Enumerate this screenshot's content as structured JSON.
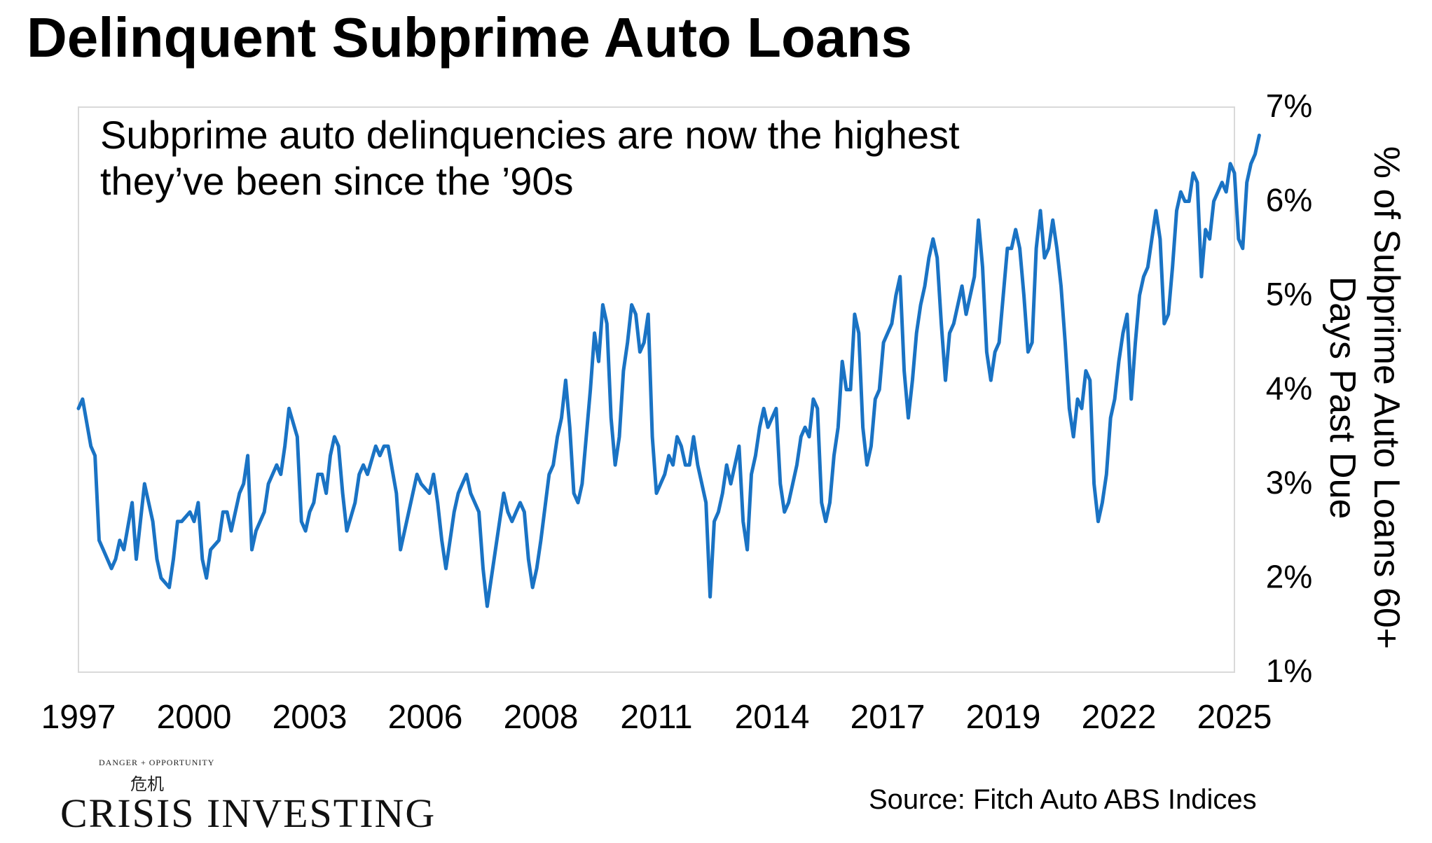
{
  "title": "Delinquent Subprime Auto Loans",
  "annotation_lines": [
    "Subprime auto delinquencies are now the highest",
    "they’ve been since the ’90s"
  ],
  "ylabel_lines": [
    "% of Subprime Auto Loans 60+",
    "Days Past Due"
  ],
  "source": "Source: Fitch Auto ABS Indices",
  "logo": {
    "top_text": "DANGER + OPPORTUNITY",
    "glyphs": "危机",
    "name": "CRISIS INVESTING"
  },
  "colors": {
    "line": "#1a73c4",
    "frame": "#d9d9d9",
    "text": "#000000"
  },
  "chart_data": {
    "type": "line",
    "title": "Delinquent Subprime Auto Loans",
    "xlabel": "",
    "ylabel": "% of Subprime Auto Loans 60+ Days Past Due",
    "x_tick_labels": [
      "1997",
      "2000",
      "2003",
      "2006",
      "2008",
      "2011",
      "2014",
      "2017",
      "2019",
      "2022",
      "2025"
    ],
    "y_tick_labels": [
      "1%",
      "2%",
      "3%",
      "4%",
      "5%",
      "6%",
      "7%"
    ],
    "ylim": [
      1,
      7
    ],
    "xlim": [
      1997,
      2025
    ],
    "grid": false,
    "legend": "none",
    "series": [
      {
        "values": [
          [
            1997.0,
            3.8
          ],
          [
            1997.1,
            3.9
          ],
          [
            1997.3,
            3.4
          ],
          [
            1997.4,
            3.3
          ],
          [
            1997.5,
            2.4
          ],
          [
            1997.6,
            2.3
          ],
          [
            1997.8,
            2.1
          ],
          [
            1997.9,
            2.2
          ],
          [
            1998.0,
            2.4
          ],
          [
            1998.1,
            2.3
          ],
          [
            1998.3,
            2.8
          ],
          [
            1998.4,
            2.2
          ],
          [
            1998.6,
            3.0
          ],
          [
            1998.8,
            2.6
          ],
          [
            1998.9,
            2.2
          ],
          [
            1999.0,
            2.0
          ],
          [
            1999.2,
            1.9
          ],
          [
            1999.3,
            2.2
          ],
          [
            1999.4,
            2.6
          ],
          [
            1999.5,
            2.6
          ],
          [
            1999.7,
            2.7
          ],
          [
            1999.8,
            2.6
          ],
          [
            1999.9,
            2.8
          ],
          [
            2000.0,
            2.2
          ],
          [
            2000.1,
            2.0
          ],
          [
            2000.2,
            2.3
          ],
          [
            2000.4,
            2.4
          ],
          [
            2000.5,
            2.7
          ],
          [
            2000.6,
            2.7
          ],
          [
            2000.7,
            2.5
          ],
          [
            2000.9,
            2.9
          ],
          [
            2001.0,
            3.0
          ],
          [
            2001.1,
            3.3
          ],
          [
            2001.2,
            2.3
          ],
          [
            2001.3,
            2.5
          ],
          [
            2001.5,
            2.7
          ],
          [
            2001.6,
            3.0
          ],
          [
            2001.8,
            3.2
          ],
          [
            2001.9,
            3.1
          ],
          [
            2002.0,
            3.4
          ],
          [
            2002.1,
            3.8
          ],
          [
            2002.3,
            3.5
          ],
          [
            2002.4,
            2.6
          ],
          [
            2002.5,
            2.5
          ],
          [
            2002.6,
            2.7
          ],
          [
            2002.7,
            2.8
          ],
          [
            2002.8,
            3.1
          ],
          [
            2002.9,
            3.1
          ],
          [
            2003.0,
            2.9
          ],
          [
            2003.1,
            3.3
          ],
          [
            2003.2,
            3.5
          ],
          [
            2003.3,
            3.4
          ],
          [
            2003.4,
            2.9
          ],
          [
            2003.5,
            2.5
          ],
          [
            2003.7,
            2.8
          ],
          [
            2003.8,
            3.1
          ],
          [
            2003.9,
            3.2
          ],
          [
            2004.0,
            3.1
          ],
          [
            2004.2,
            3.4
          ],
          [
            2004.3,
            3.3
          ],
          [
            2004.4,
            3.4
          ],
          [
            2004.5,
            3.4
          ],
          [
            2004.7,
            2.9
          ],
          [
            2004.8,
            2.3
          ],
          [
            2004.9,
            2.5
          ],
          [
            2005.0,
            2.7
          ],
          [
            2005.2,
            3.1
          ],
          [
            2005.3,
            3.0
          ],
          [
            2005.5,
            2.9
          ],
          [
            2005.6,
            3.1
          ],
          [
            2005.7,
            2.8
          ],
          [
            2005.8,
            2.4
          ],
          [
            2005.9,
            2.1
          ],
          [
            2006.0,
            2.4
          ],
          [
            2006.1,
            2.7
          ],
          [
            2006.2,
            2.9
          ],
          [
            2006.4,
            3.1
          ],
          [
            2006.5,
            2.9
          ],
          [
            2006.6,
            2.8
          ],
          [
            2006.7,
            2.7
          ],
          [
            2006.8,
            2.1
          ],
          [
            2006.9,
            1.7
          ],
          [
            2007.0,
            2.0
          ],
          [
            2007.1,
            2.3
          ],
          [
            2007.3,
            2.9
          ],
          [
            2007.4,
            2.7
          ],
          [
            2007.5,
            2.6
          ],
          [
            2007.6,
            2.7
          ],
          [
            2007.7,
            2.8
          ],
          [
            2007.8,
            2.7
          ],
          [
            2007.9,
            2.2
          ],
          [
            2008.0,
            1.9
          ],
          [
            2008.1,
            2.1
          ],
          [
            2008.2,
            2.4
          ],
          [
            2008.4,
            3.1
          ],
          [
            2008.5,
            3.2
          ],
          [
            2008.6,
            3.5
          ],
          [
            2008.7,
            3.7
          ],
          [
            2008.8,
            4.1
          ],
          [
            2008.9,
            3.6
          ],
          [
            2009.0,
            2.9
          ],
          [
            2009.1,
            2.8
          ],
          [
            2009.2,
            3.0
          ],
          [
            2009.3,
            3.5
          ],
          [
            2009.4,
            4.0
          ],
          [
            2009.5,
            4.6
          ],
          [
            2009.6,
            4.3
          ],
          [
            2009.7,
            4.9
          ],
          [
            2009.8,
            4.7
          ],
          [
            2009.9,
            3.7
          ],
          [
            2010.0,
            3.2
          ],
          [
            2010.1,
            3.5
          ],
          [
            2010.2,
            4.2
          ],
          [
            2010.3,
            4.5
          ],
          [
            2010.4,
            4.9
          ],
          [
            2010.5,
            4.8
          ],
          [
            2010.6,
            4.4
          ],
          [
            2010.7,
            4.5
          ],
          [
            2010.8,
            4.8
          ],
          [
            2010.9,
            3.5
          ],
          [
            2011.0,
            2.9
          ],
          [
            2011.1,
            3.0
          ],
          [
            2011.2,
            3.1
          ],
          [
            2011.3,
            3.3
          ],
          [
            2011.4,
            3.2
          ],
          [
            2011.5,
            3.5
          ],
          [
            2011.6,
            3.4
          ],
          [
            2011.7,
            3.2
          ],
          [
            2011.8,
            3.2
          ],
          [
            2011.9,
            3.5
          ],
          [
            2012.0,
            3.2
          ],
          [
            2012.2,
            2.8
          ],
          [
            2012.3,
            1.8
          ],
          [
            2012.4,
            2.6
          ],
          [
            2012.5,
            2.7
          ],
          [
            2012.6,
            2.9
          ],
          [
            2012.7,
            3.2
          ],
          [
            2012.8,
            3.0
          ],
          [
            2012.9,
            3.2
          ],
          [
            2013.0,
            3.4
          ],
          [
            2013.1,
            2.6
          ],
          [
            2013.2,
            2.3
          ],
          [
            2013.3,
            3.1
          ],
          [
            2013.4,
            3.3
          ],
          [
            2013.5,
            3.6
          ],
          [
            2013.6,
            3.8
          ],
          [
            2013.7,
            3.6
          ],
          [
            2013.8,
            3.7
          ],
          [
            2013.9,
            3.8
          ],
          [
            2014.0,
            3.0
          ],
          [
            2014.1,
            2.7
          ],
          [
            2014.2,
            2.8
          ],
          [
            2014.3,
            3.0
          ],
          [
            2014.4,
            3.2
          ],
          [
            2014.5,
            3.5
          ],
          [
            2014.6,
            3.6
          ],
          [
            2014.7,
            3.5
          ],
          [
            2014.8,
            3.9
          ],
          [
            2014.9,
            3.8
          ],
          [
            2015.0,
            2.8
          ],
          [
            2015.1,
            2.6
          ],
          [
            2015.2,
            2.8
          ],
          [
            2015.3,
            3.3
          ],
          [
            2015.4,
            3.6
          ],
          [
            2015.5,
            4.3
          ],
          [
            2015.6,
            4.0
          ],
          [
            2015.7,
            4.0
          ],
          [
            2015.8,
            4.8
          ],
          [
            2015.9,
            4.6
          ],
          [
            2016.0,
            3.6
          ],
          [
            2016.1,
            3.2
          ],
          [
            2016.2,
            3.4
          ],
          [
            2016.3,
            3.9
          ],
          [
            2016.4,
            4.0
          ],
          [
            2016.5,
            4.5
          ],
          [
            2016.6,
            4.6
          ],
          [
            2016.7,
            4.7
          ],
          [
            2016.8,
            5.0
          ],
          [
            2016.9,
            5.2
          ],
          [
            2017.0,
            4.2
          ],
          [
            2017.1,
            3.7
          ],
          [
            2017.2,
            4.1
          ],
          [
            2017.3,
            4.6
          ],
          [
            2017.4,
            4.9
          ],
          [
            2017.5,
            5.1
          ],
          [
            2017.6,
            5.4
          ],
          [
            2017.7,
            5.6
          ],
          [
            2017.8,
            5.4
          ],
          [
            2017.9,
            4.7
          ],
          [
            2018.0,
            4.1
          ],
          [
            2018.1,
            4.6
          ],
          [
            2018.2,
            4.7
          ],
          [
            2018.3,
            4.9
          ],
          [
            2018.4,
            5.1
          ],
          [
            2018.5,
            4.8
          ],
          [
            2018.6,
            5.0
          ],
          [
            2018.7,
            5.2
          ],
          [
            2018.8,
            5.8
          ],
          [
            2018.9,
            5.3
          ],
          [
            2019.0,
            4.4
          ],
          [
            2019.1,
            4.1
          ],
          [
            2019.2,
            4.4
          ],
          [
            2019.3,
            4.5
          ],
          [
            2019.4,
            5.0
          ],
          [
            2019.5,
            5.5
          ],
          [
            2019.6,
            5.5
          ],
          [
            2019.7,
            5.7
          ],
          [
            2019.8,
            5.5
          ],
          [
            2019.9,
            5.0
          ],
          [
            2020.0,
            4.4
          ],
          [
            2020.1,
            4.5
          ],
          [
            2020.2,
            5.5
          ],
          [
            2020.3,
            5.9
          ],
          [
            2020.4,
            5.4
          ],
          [
            2020.5,
            5.5
          ],
          [
            2020.6,
            5.8
          ],
          [
            2020.7,
            5.5
          ],
          [
            2020.8,
            5.1
          ],
          [
            2020.9,
            4.5
          ],
          [
            2021.0,
            3.8
          ],
          [
            2021.1,
            3.5
          ],
          [
            2021.2,
            3.9
          ],
          [
            2021.3,
            3.8
          ],
          [
            2021.4,
            4.2
          ],
          [
            2021.5,
            4.1
          ],
          [
            2021.6,
            3.0
          ],
          [
            2021.7,
            2.6
          ],
          [
            2021.8,
            2.8
          ],
          [
            2021.9,
            3.1
          ],
          [
            2022.0,
            3.7
          ],
          [
            2022.1,
            3.9
          ],
          [
            2022.2,
            4.3
          ],
          [
            2022.3,
            4.6
          ],
          [
            2022.4,
            4.8
          ],
          [
            2022.5,
            3.9
          ],
          [
            2022.6,
            4.5
          ],
          [
            2022.7,
            5.0
          ],
          [
            2022.8,
            5.2
          ],
          [
            2022.9,
            5.3
          ],
          [
            2023.0,
            5.6
          ],
          [
            2023.1,
            5.9
          ],
          [
            2023.2,
            5.6
          ],
          [
            2023.3,
            4.7
          ],
          [
            2023.4,
            4.8
          ],
          [
            2023.5,
            5.3
          ],
          [
            2023.6,
            5.9
          ],
          [
            2023.7,
            6.1
          ],
          [
            2023.8,
            6.0
          ],
          [
            2023.9,
            6.0
          ],
          [
            2024.0,
            6.3
          ],
          [
            2024.1,
            6.2
          ],
          [
            2024.2,
            5.2
          ],
          [
            2024.3,
            5.7
          ],
          [
            2024.4,
            5.6
          ],
          [
            2024.5,
            6.0
          ],
          [
            2024.6,
            6.1
          ],
          [
            2024.7,
            6.2
          ],
          [
            2024.8,
            6.1
          ],
          [
            2024.9,
            6.4
          ],
          [
            2025.0,
            6.3
          ],
          [
            2025.1,
            5.6
          ],
          [
            2025.2,
            5.5
          ],
          [
            2025.3,
            6.2
          ],
          [
            2025.4,
            6.4
          ],
          [
            2025.5,
            6.5
          ],
          [
            2025.6,
            6.7
          ]
        ]
      }
    ]
  }
}
